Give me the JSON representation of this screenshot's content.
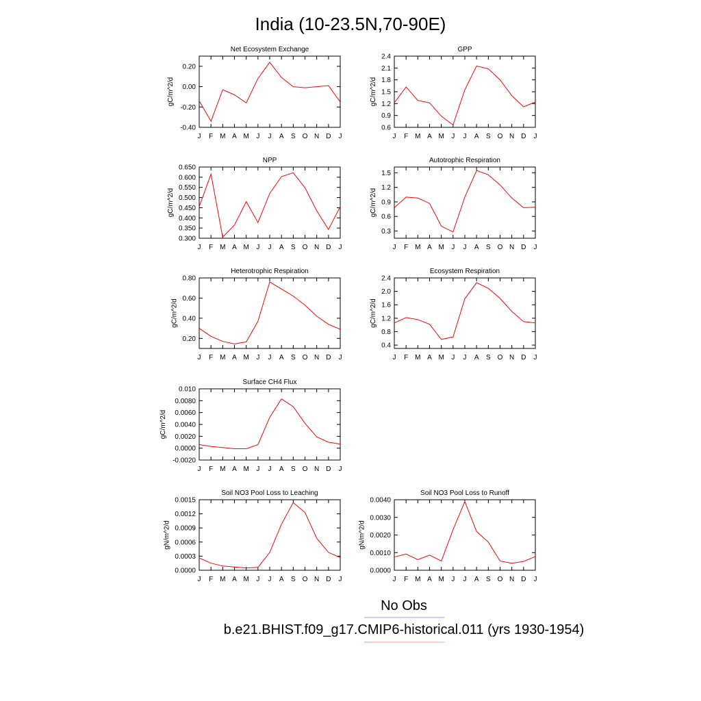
{
  "figure": {
    "title": "India (10-23.5N,70-90E)",
    "legend": [
      {
        "label": "No Obs",
        "color": "#9999ff"
      },
      {
        "label": "b.e21.BHIST.f09_g17.CMIP6-historical.011 (yrs 1930-1954)",
        "color": "#ff9999"
      }
    ]
  },
  "chart_data": [
    {
      "type": "line",
      "title": "Net Ecosystem Exchange",
      "ylabel": "gC/m^2/d",
      "categories": [
        "J",
        "F",
        "M",
        "A",
        "M",
        "J",
        "J",
        "A",
        "S",
        "O",
        "N",
        "D",
        "J"
      ],
      "yticks": [
        "0.20",
        "0.00",
        "-0.20",
        "-0.40"
      ],
      "ylim": [
        -0.4,
        0.3
      ],
      "values": [
        -0.14,
        -0.34,
        -0.03,
        -0.08,
        -0.16,
        0.08,
        0.24,
        0.09,
        0.0,
        -0.01,
        0.0,
        0.01,
        -0.15
      ],
      "color": "#ff0000"
    },
    {
      "type": "line",
      "title": "GPP",
      "ylabel": "gC/m^2/d",
      "categories": [
        "J",
        "F",
        "M",
        "A",
        "M",
        "J",
        "J",
        "A",
        "S",
        "O",
        "N",
        "D",
        "J"
      ],
      "yticks": [
        "2.4",
        "2.1",
        "1.8",
        "1.5",
        "1.2",
        "0.9",
        "0.6"
      ],
      "ylim": [
        0.6,
        2.4
      ],
      "values": [
        1.22,
        1.62,
        1.28,
        1.22,
        0.88,
        0.66,
        1.55,
        2.15,
        2.08,
        1.8,
        1.4,
        1.12,
        1.24
      ],
      "color": "#ff0000"
    },
    {
      "type": "line",
      "title": "NPP",
      "ylabel": "gC/m^2/d",
      "categories": [
        "J",
        "F",
        "M",
        "A",
        "M",
        "J",
        "J",
        "A",
        "S",
        "O",
        "N",
        "D",
        "J"
      ],
      "yticks": [
        "0.650",
        "0.600",
        "0.550",
        "0.500",
        "0.450",
        "0.400",
        "0.350",
        "0.300"
      ],
      "ylim": [
        0.3,
        0.65
      ],
      "values": [
        0.455,
        0.615,
        0.305,
        0.365,
        0.48,
        0.377,
        0.52,
        0.603,
        0.622,
        0.548,
        0.435,
        0.343,
        0.455
      ],
      "color": "#ff0000"
    },
    {
      "type": "line",
      "title": "Autotrophic Respiration",
      "ylabel": "gC/m^2/d",
      "categories": [
        "J",
        "F",
        "M",
        "A",
        "M",
        "J",
        "J",
        "A",
        "S",
        "O",
        "N",
        "D",
        "J"
      ],
      "yticks": [
        "1.5",
        "1.2",
        "0.9",
        "0.6",
        "0.3"
      ],
      "ylim": [
        0.15,
        1.62
      ],
      "values": [
        0.78,
        1.0,
        0.98,
        0.87,
        0.4,
        0.28,
        1.0,
        1.55,
        1.46,
        1.25,
        0.98,
        0.78,
        0.79
      ],
      "color": "#ff0000"
    },
    {
      "type": "line",
      "title": "Heterotrophic Respiration",
      "ylabel": "gC/m^2/d",
      "categories": [
        "J",
        "F",
        "M",
        "A",
        "M",
        "J",
        "J",
        "A",
        "S",
        "O",
        "N",
        "D",
        "J"
      ],
      "yticks": [
        "0.80",
        "0.60",
        "0.40",
        "0.20"
      ],
      "ylim": [
        0.1,
        0.8
      ],
      "values": [
        0.3,
        0.22,
        0.17,
        0.145,
        0.165,
        0.37,
        0.76,
        0.69,
        0.62,
        0.53,
        0.42,
        0.34,
        0.29
      ],
      "color": "#ff0000"
    },
    {
      "type": "line",
      "title": "Ecosystem Respiration",
      "ylabel": "gC/m^2/d",
      "categories": [
        "J",
        "F",
        "M",
        "A",
        "M",
        "J",
        "J",
        "A",
        "S",
        "O",
        "N",
        "D",
        "J"
      ],
      "yticks": [
        "2.4",
        "2.0",
        "1.6",
        "1.2",
        "0.8",
        "0.4"
      ],
      "ylim": [
        0.3,
        2.4
      ],
      "values": [
        1.06,
        1.22,
        1.16,
        1.02,
        0.57,
        0.64,
        1.78,
        2.26,
        2.09,
        1.79,
        1.4,
        1.1,
        1.06
      ],
      "color": "#ff0000"
    },
    {
      "type": "line",
      "title": "Surface CH4 Flux",
      "ylabel": "gC/m^2/d",
      "categories": [
        "J",
        "F",
        "M",
        "A",
        "M",
        "J",
        "J",
        "A",
        "S",
        "O",
        "N",
        "D",
        "J"
      ],
      "yticks": [
        "0.010",
        "0.0080",
        "0.0060",
        "0.0040",
        "0.0020",
        "0.0000",
        "-0.0020"
      ],
      "ylim": [
        -0.002,
        0.01
      ],
      "values": [
        0.0006,
        0.0003,
        0.0001,
        -0.0001,
        -0.0001,
        0.0006,
        0.0052,
        0.0083,
        0.007,
        0.0042,
        0.0019,
        0.001,
        0.0007
      ],
      "color": "#ff0000"
    },
    {
      "type": "line",
      "title": "Soil NO3 Pool Loss to Leaching",
      "ylabel": "gN/m^2/d",
      "categories": [
        "J",
        "F",
        "M",
        "A",
        "M",
        "J",
        "J",
        "A",
        "S",
        "O",
        "N",
        "D",
        "J"
      ],
      "yticks": [
        "0.0015",
        "0.0012",
        "0.0009",
        "0.0006",
        "0.0003",
        "0.0000"
      ],
      "ylim": [
        0.0,
        0.0015
      ],
      "values": [
        0.00026,
        0.00015,
        9e-05,
        7e-05,
        5e-05,
        6e-05,
        0.00038,
        0.00098,
        0.00144,
        0.00123,
        0.00068,
        0.00038,
        0.00027
      ],
      "color": "#ff0000"
    },
    {
      "type": "line",
      "title": "Soil NO3 Pool Loss to Runoff",
      "ylabel": "gN/m^2/d",
      "categories": [
        "J",
        "F",
        "M",
        "A",
        "M",
        "J",
        "J",
        "A",
        "S",
        "O",
        "N",
        "D",
        "J"
      ],
      "yticks": [
        "0.0040",
        "0.0030",
        "0.0020",
        "0.0010",
        "0.0000"
      ],
      "ylim": [
        0.0,
        0.004
      ],
      "values": [
        0.00075,
        0.00092,
        0.0006,
        0.00086,
        0.00053,
        0.0023,
        0.0039,
        0.0022,
        0.0016,
        0.00052,
        0.0004,
        0.0005,
        0.00078
      ],
      "color": "#ff0000"
    }
  ]
}
